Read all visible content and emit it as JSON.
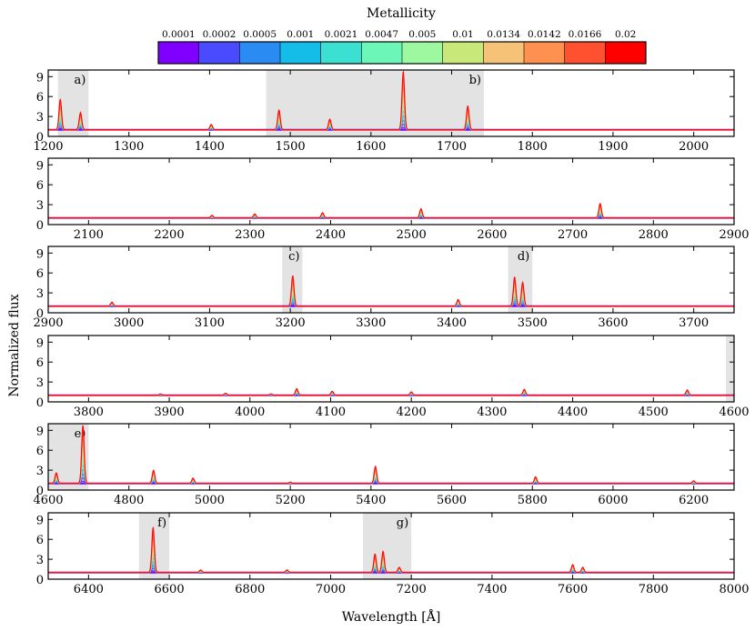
{
  "chart_data": {
    "type": "line",
    "ylabel": "Normalized flux",
    "xlabel": "Wavelength [Å]",
    "colorbar": {
      "title": "Metallicity",
      "labels": [
        "0.0001",
        "0.0002",
        "0.0005",
        "0.001",
        "0.0021",
        "0.0047",
        "0.005",
        "0.01",
        "0.0134",
        "0.0142",
        "0.0166",
        "0.02"
      ],
      "colors": [
        "#7f00ff",
        "#4a4bff",
        "#2a8cf3",
        "#14bde8",
        "#3ce0d3",
        "#6cf6b8",
        "#9ef8a0",
        "#c8e87a",
        "#f6c278",
        "#ff9150",
        "#ff5030",
        "#ff0000"
      ]
    },
    "yticks": [
      0,
      3,
      6,
      9
    ],
    "ylim": [
      0,
      10
    ],
    "panels": [
      {
        "xlim": [
          1200,
          2050
        ],
        "xticks": [
          1200,
          1300,
          1400,
          1500,
          1600,
          1700,
          1800,
          1900,
          2000
        ],
        "shaded": [
          {
            "range": [
              1212,
              1250
            ],
            "label": "a)"
          },
          {
            "range": [
              1470,
              1740
            ],
            "label": "b)"
          }
        ],
        "lines": [
          [
            1215,
            5.6
          ],
          [
            1240,
            3.6
          ],
          [
            1402,
            1.8
          ],
          [
            1486,
            4.0
          ],
          [
            1549,
            2.6
          ],
          [
            1640,
            9.8
          ],
          [
            1720,
            4.6
          ]
        ]
      },
      {
        "xlim": [
          2050,
          2900
        ],
        "xticks": [
          2100,
          2200,
          2300,
          2400,
          2500,
          2600,
          2700,
          2800,
          2900
        ],
        "shaded": [],
        "lines": [
          [
            2253,
            1.4
          ],
          [
            2306,
            1.6
          ],
          [
            2390,
            1.8
          ],
          [
            2512,
            2.4
          ],
          [
            2734,
            3.2
          ]
        ]
      },
      {
        "xlim": [
          2900,
          3750
        ],
        "xticks": [
          2900,
          3000,
          3100,
          3200,
          3300,
          3400,
          3500,
          3600,
          3700
        ],
        "shaded": [
          {
            "range": [
              3190,
              3215
            ],
            "label": "c)"
          },
          {
            "range": [
              3470,
              3500
            ],
            "label": "d)"
          }
        ],
        "lines": [
          [
            2979,
            1.6
          ],
          [
            3203,
            5.6
          ],
          [
            3408,
            2.0
          ],
          [
            3478,
            5.4
          ],
          [
            3488,
            4.6
          ]
        ]
      },
      {
        "xlim": [
          3750,
          4600
        ],
        "xticks": [
          3800,
          3900,
          4000,
          4100,
          4200,
          4300,
          4400,
          4500,
          4600
        ],
        "shaded": [
          {
            "range": [
              4590,
              4600
            ],
            "label": ""
          }
        ],
        "lines": [
          [
            3889,
            1.2
          ],
          [
            3970,
            1.3
          ],
          [
            4026,
            1.2
          ],
          [
            4058,
            2.0
          ],
          [
            4102,
            1.6
          ],
          [
            4200,
            1.5
          ],
          [
            4340,
            1.9
          ],
          [
            4542,
            1.8
          ]
        ]
      },
      {
        "xlim": [
          4600,
          6300
        ],
        "xticks": [
          4600,
          4800,
          5000,
          5200,
          5400,
          5600,
          5800,
          6000,
          6200
        ],
        "shaded": [
          {
            "range": [
              4600,
              4700
            ],
            "label": "e)"
          }
        ],
        "lines": [
          [
            4620,
            2.6
          ],
          [
            4686,
            9.8
          ],
          [
            4861,
            3.0
          ],
          [
            4959,
            1.8
          ],
          [
            5200,
            1.2
          ],
          [
            5411,
            3.6
          ],
          [
            5808,
            2.0
          ],
          [
            6200,
            1.4
          ]
        ]
      },
      {
        "xlim": [
          6300,
          8000
        ],
        "xticks": [
          6400,
          6600,
          6800,
          7000,
          7200,
          7400,
          7600,
          7800,
          8000
        ],
        "shaded": [
          {
            "range": [
              6525,
              6600
            ],
            "label": "f)"
          },
          {
            "range": [
              7080,
              7200
            ],
            "label": "g)"
          }
        ],
        "lines": [
          [
            6560,
            7.8
          ],
          [
            6678,
            1.4
          ],
          [
            6892,
            1.4
          ],
          [
            7110,
            3.8
          ],
          [
            7130,
            4.2
          ],
          [
            7170,
            1.8
          ],
          [
            7600,
            2.2
          ],
          [
            7625,
            1.8
          ]
        ]
      }
    ]
  }
}
